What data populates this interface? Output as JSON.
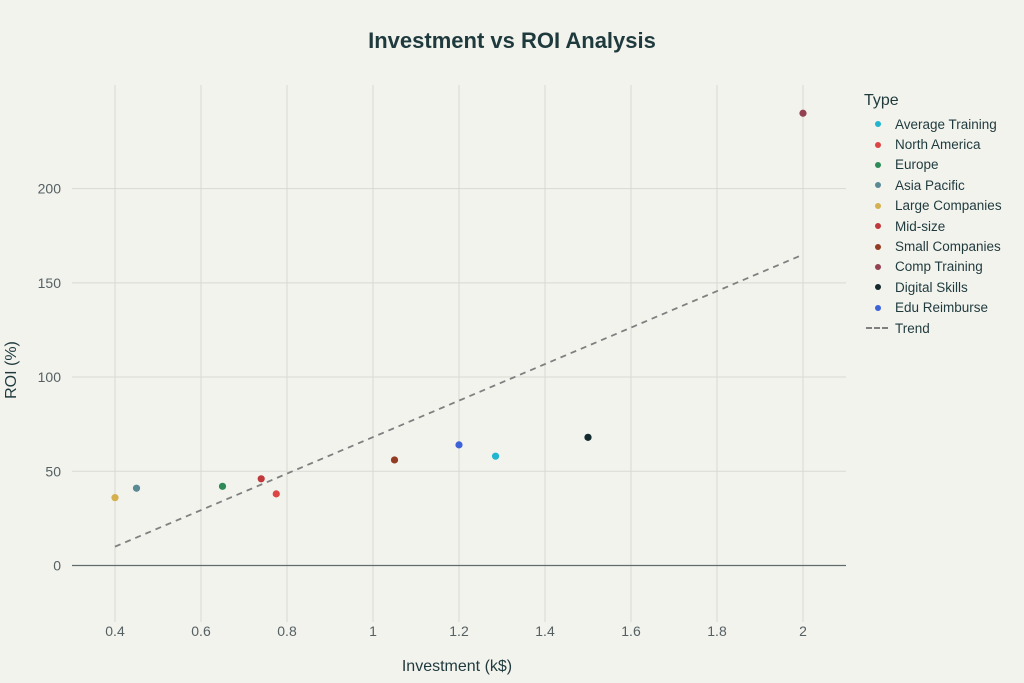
{
  "chart_data": {
    "type": "scatter",
    "title": "Investment vs ROI Analysis",
    "xlabel": "Investment (k$)",
    "ylabel": "ROI (%)",
    "xlim": [
      0.3,
      2.1
    ],
    "ylim": [
      -30,
      255
    ],
    "x_ticks": [
      0.4,
      0.6,
      0.8,
      1,
      1.2,
      1.4,
      1.6,
      1.8,
      2
    ],
    "x_tick_labels": [
      "0.4",
      "0.6",
      "0.8",
      "1",
      "1.2",
      "1.4",
      "1.6",
      "1.8",
      "2"
    ],
    "y_ticks": [
      0,
      50,
      100,
      150,
      200
    ],
    "y_tick_labels": [
      "0",
      "50",
      "100",
      "150",
      "200"
    ],
    "grid": true,
    "legend_title": "Type",
    "legend_position": "right",
    "series": [
      {
        "name": "Average Training",
        "color": "#22b5d0",
        "x": [
          1.285
        ],
        "y": [
          58
        ]
      },
      {
        "name": "North America",
        "color": "#dd4444",
        "x": [
          0.775
        ],
        "y": [
          38
        ]
      },
      {
        "name": "Europe",
        "color": "#2e8b57",
        "x": [
          0.65
        ],
        "y": [
          42
        ]
      },
      {
        "name": "Asia Pacific",
        "color": "#5a8a94",
        "x": [
          0.45
        ],
        "y": [
          41
        ]
      },
      {
        "name": "Large Companies",
        "color": "#d4b04e",
        "x": [
          0.4
        ],
        "y": [
          36
        ]
      },
      {
        "name": "Mid-size",
        "color": "#c0393b",
        "x": [
          0.74
        ],
        "y": [
          46
        ]
      },
      {
        "name": "Small Companies",
        "color": "#943c22",
        "x": [
          1.05
        ],
        "y": [
          56
        ]
      },
      {
        "name": "Comp Training",
        "color": "#944152",
        "x": [
          2.0
        ],
        "y": [
          240
        ]
      },
      {
        "name": "Digital Skills",
        "color": "#13292d",
        "x": [
          1.5
        ],
        "y": [
          68
        ]
      },
      {
        "name": "Edu Reimburse",
        "color": "#3c63d8",
        "x": [
          1.2
        ],
        "y": [
          64
        ]
      }
    ],
    "trend": {
      "name": "Trend",
      "color": "#808080",
      "x": [
        0.4,
        2.0
      ],
      "y": [
        10,
        165
      ]
    }
  }
}
